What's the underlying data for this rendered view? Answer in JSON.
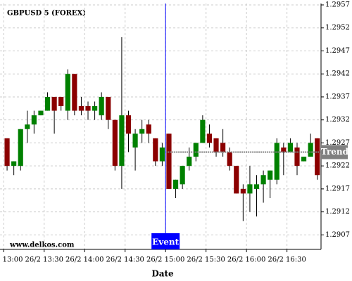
{
  "chart_data": {
    "type": "candlestick",
    "title": "GBPUSD 5 (FOREX)",
    "x_label": "Date",
    "watermark": "www.delkos.com",
    "open": [
      1.2928,
      1.2922,
      1.2922,
      1.293,
      1.2931,
      1.2933,
      1.2934,
      1.2937,
      1.2937,
      1.2934,
      1.2942,
      1.2935,
      1.2935,
      1.2934,
      1.2933,
      1.2937,
      1.2932,
      1.2922,
      1.2933,
      1.2926,
      1.2929,
      1.2931,
      1.2928,
      1.2923,
      1.2929,
      1.2917,
      1.2918,
      1.2922,
      1.2924,
      1.2927,
      1.2929,
      1.2928,
      1.2927,
      1.2925,
      1.2922,
      1.2917,
      1.2916,
      1.2917,
      1.2918,
      1.2919,
      1.2919,
      1.2926,
      1.2925,
      1.2926,
      1.2923,
      1.2924,
      1.2928
    ],
    "high": [
      1.2928,
      1.2923,
      1.293,
      1.2934,
      1.2934,
      1.2934,
      1.2938,
      1.2937,
      1.2937,
      1.2943,
      1.2942,
      1.2937,
      1.2936,
      1.2936,
      1.2938,
      1.2937,
      1.2932,
      1.295,
      1.2934,
      1.293,
      1.2932,
      1.2932,
      1.2928,
      1.2927,
      1.2929,
      1.2919,
      1.2922,
      1.2926,
      1.2927,
      1.2933,
      1.2931,
      1.2928,
      1.293,
      1.2926,
      1.2922,
      1.2918,
      1.2922,
      1.292,
      1.2921,
      1.2921,
      1.2928,
      1.2927,
      1.2928,
      1.2927,
      1.2924,
      1.2929,
      1.2928
    ],
    "low": [
      1.2921,
      1.292,
      1.2921,
      1.2927,
      1.2929,
      1.2933,
      1.2934,
      1.2929,
      1.2934,
      1.2932,
      1.2933,
      1.2933,
      1.2932,
      1.2932,
      1.2932,
      1.293,
      1.2921,
      1.2917,
      1.2925,
      1.2921,
      1.2927,
      1.2927,
      1.2922,
      1.2922,
      1.2917,
      1.2915,
      1.2917,
      1.2921,
      1.2923,
      1.2927,
      1.2926,
      1.2924,
      1.2924,
      1.2921,
      1.2916,
      1.291,
      1.2912,
      1.2911,
      1.2914,
      1.2915,
      1.2918,
      1.292,
      1.2925,
      1.292,
      1.2923,
      1.2924,
      1.2919
    ],
    "close": [
      1.2922,
      1.2923,
      1.293,
      1.2931,
      1.2933,
      1.2934,
      1.2937,
      1.2934,
      1.2935,
      1.2942,
      1.2934,
      1.2934,
      1.2934,
      1.2935,
      1.2937,
      1.2932,
      1.2922,
      1.2933,
      1.2929,
      1.2929,
      1.293,
      1.2929,
      1.2923,
      1.2926,
      1.2917,
      1.2919,
      1.2922,
      1.2924,
      1.2927,
      1.2932,
      1.2927,
      1.2925,
      1.2925,
      1.2922,
      1.2916,
      1.2916,
      1.2918,
      1.2918,
      1.292,
      1.2921,
      1.2927,
      1.2925,
      1.2927,
      1.2922,
      1.2924,
      1.2927,
      1.292
    ],
    "up_color": "#008000",
    "down_color": "#8b0000",
    "xlim": [
      -1.05,
      46.55
    ],
    "xticks": [
      {
        "value": -0.5,
        "label": "26/2 13:00"
      },
      {
        "value": 5.5,
        "label": "26/2 13:30"
      },
      {
        "value": 11.5,
        "label": "26/2 14:00"
      },
      {
        "value": 17.5,
        "label": "26/2 14:30"
      },
      {
        "value": 23.5,
        "label": "26/2 15:00"
      },
      {
        "value": 29.5,
        "label": "26/2 15:30"
      },
      {
        "value": 35.5,
        "label": "26/2 16:00"
      },
      {
        "value": 41.5,
        "label": "26/2 16:30"
      }
    ],
    "ylim": [
      1.2904,
      1.2957
    ],
    "yticks": [
      1.2907,
      1.2912,
      1.2917,
      1.2922,
      1.2927,
      1.2932,
      1.2937,
      1.2942,
      1.2947,
      1.2952,
      1.2957
    ],
    "grid": true,
    "event": {
      "label": "Event",
      "x": 23.5,
      "color": "#0000ff"
    },
    "trend": {
      "label": "Trend",
      "x": [
        23.5,
        46.55
      ],
      "y": [
        1.2925,
        1.2925
      ],
      "color": "#808080"
    }
  }
}
